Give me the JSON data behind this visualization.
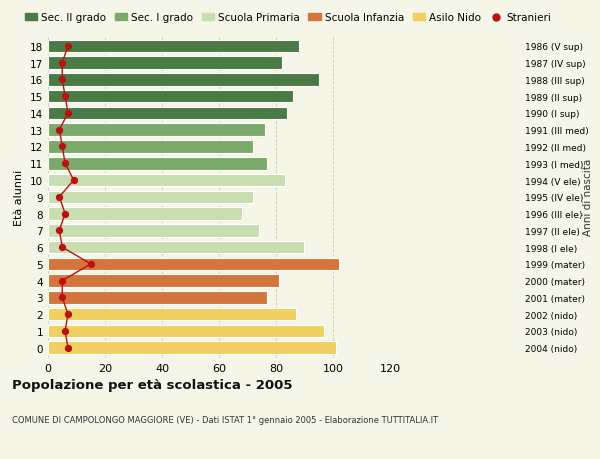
{
  "ages": [
    18,
    17,
    16,
    15,
    14,
    13,
    12,
    11,
    10,
    9,
    8,
    7,
    6,
    5,
    4,
    3,
    2,
    1,
    0
  ],
  "values": [
    88,
    82,
    95,
    86,
    84,
    76,
    72,
    77,
    83,
    72,
    68,
    74,
    90,
    102,
    81,
    77,
    87,
    97,
    101
  ],
  "stranieri": [
    7,
    5,
    5,
    6,
    7,
    4,
    5,
    6,
    9,
    4,
    6,
    4,
    5,
    15,
    5,
    5,
    7,
    6,
    7
  ],
  "anni_nascita": [
    "1986 (V sup)",
    "1987 (IV sup)",
    "1988 (III sup)",
    "1989 (II sup)",
    "1990 (I sup)",
    "1991 (III med)",
    "1992 (II med)",
    "1993 (I med)",
    "1994 (V ele)",
    "1995 (IV ele)",
    "1996 (III ele)",
    "1997 (II ele)",
    "1998 (I ele)",
    "1999 (mater)",
    "2000 (mater)",
    "2001 (mater)",
    "2002 (nido)",
    "2003 (nido)",
    "2004 (nido)"
  ],
  "bar_colors": [
    "#4a7a45",
    "#4a7a45",
    "#4a7a45",
    "#4a7a45",
    "#4a7a45",
    "#7aaa6a",
    "#7aaa6a",
    "#7aaa6a",
    "#c8ddb0",
    "#c8ddb0",
    "#c8ddb0",
    "#c8ddb0",
    "#c8ddb0",
    "#d4763b",
    "#d4763b",
    "#d4763b",
    "#f0d060",
    "#f0d060",
    "#f0d060"
  ],
  "legend_labels": [
    "Sec. II grado",
    "Sec. I grado",
    "Scuola Primaria",
    "Scuola Infanzia",
    "Asilo Nido",
    "Stranieri"
  ],
  "legend_colors": [
    "#4a7a45",
    "#7aaa6a",
    "#c8ddb0",
    "#d4763b",
    "#f0d060",
    "#cc2222"
  ],
  "ylabel": "Età alunni",
  "right_ylabel": "Anni di nascita",
  "title": "Popolazione per età scolastica - 2005",
  "subtitle": "COMUNE DI CAMPOLONGO MAGGIORE (VE) - Dati ISTAT 1° gennaio 2005 - Elaborazione TUTTITALIA.IT",
  "xlim": [
    0,
    120
  ],
  "xticks": [
    0,
    20,
    40,
    60,
    80,
    100,
    120
  ],
  "background_color": "#f5f5e8",
  "stranieri_color": "#bb1111",
  "bar_height": 0.75,
  "grid_color": "#ccccaa"
}
